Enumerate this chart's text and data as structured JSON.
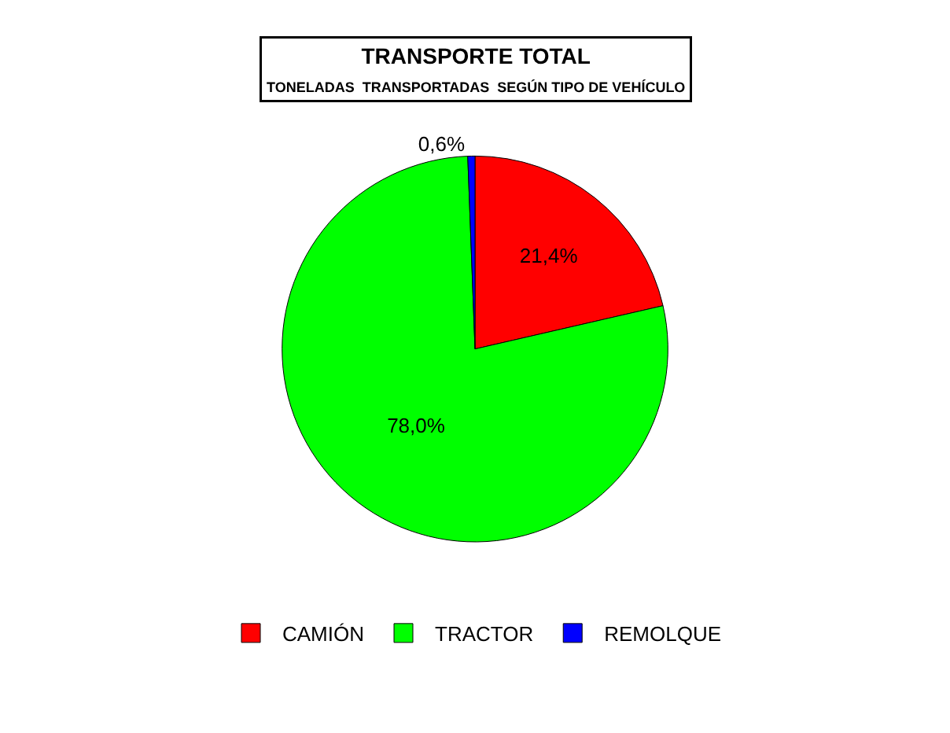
{
  "chart_data": {
    "type": "pie",
    "title": "TRANSPORTE TOTAL",
    "subtitle": "TONELADAS  TRANSPORTADAS  SEGÚN TIPO DE VEHÍCULO",
    "categories": [
      "CAMIÓN",
      "TRACTOR",
      "REMOLQUE"
    ],
    "values": [
      21.4,
      78.0,
      0.6
    ],
    "colors": [
      "#ff0000",
      "#00ff00",
      "#0000ff"
    ],
    "value_labels": [
      "21,4%",
      "78,0%",
      "0,6%"
    ],
    "legend": "bottom"
  }
}
